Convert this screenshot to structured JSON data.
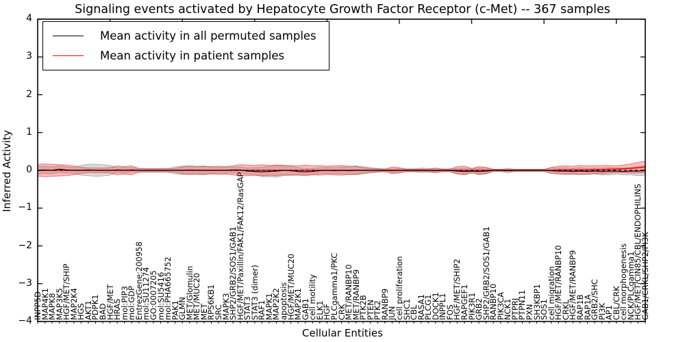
{
  "figure": {
    "title": "Signaling events activated by Hepatocyte Growth Factor Receptor (c-Met) -- 367 samples",
    "xlabel": "Cellular Entities",
    "ylabel": "Inferred Activity"
  },
  "legend": {
    "entries": [
      {
        "label": "Mean activity in all permuted samples",
        "color": "#000000"
      },
      {
        "label": "Mean activity in patient samples",
        "color": "#ff0000"
      }
    ]
  },
  "chart_data": {
    "type": "line",
    "title": "Signaling events activated by Hepatocyte Growth Factor Receptor (c-Met) -- 367 samples",
    "xlabel": "Cellular Entities",
    "ylabel": "Inferred Activity",
    "ylim": [
      -4,
      4
    ],
    "yticks": [
      -4,
      -3,
      -2,
      -1,
      0,
      1,
      2,
      3,
      4
    ],
    "grid": false,
    "legend_position": "upper left",
    "zero_line": {
      "y": 0,
      "style": "dashed",
      "color": "#000000"
    },
    "entities": [
      "INPP5D",
      "MAP4K1",
      "MAPK8",
      "MAP3K5",
      "HGF/MET/SHIP",
      "MAP2K4",
      "HGS",
      "AKT1",
      "PDPK1",
      "BAD",
      "HGF/MET",
      "HRAS",
      "mol:PIP3",
      "mol:GDP",
      "EntrezGene:200958",
      "mol:SU11274",
      "GO:0007205",
      "mol:SU5416",
      "mol:PHA665752",
      "PAK1",
      "GLMN",
      "MET/Glomulin",
      "MET/MUC20",
      "MET",
      "RPS6KB1",
      "SRC",
      "MAPK3",
      "SHP2/GRB2/SOS1/GAB1",
      "HGF/MET/Paxillin/FAK1/FAK12/RasGAP",
      "STAT3",
      "STAT3 (dimer)",
      "RAF1",
      "MAPK1",
      "MAP2K2",
      "apoptosis",
      "HGF/MET/MUC20",
      "MAP2K1",
      "GAB1",
      "cell motility",
      "ELK1",
      "HGF",
      "PLCgamma1/PKC",
      "CRK",
      "MET/RANBP10",
      "MET/RANBP9",
      "PTK2B",
      "PTEN",
      "PTK2",
      "RANBP9",
      "JUN",
      "cell proliferation",
      "SHC1",
      "CBL",
      "RASA1",
      "PLCG1",
      "DOCK1",
      "INPPL1",
      "FOS",
      "HGF/MET/SHIP2",
      "RAPGEF1",
      "PIK3R1",
      "GRB2",
      "SHP2/GRB2/SOS1/GAB1",
      "RANBP10",
      "PIK3CA",
      "NCK1",
      "PTPRJ",
      "PTPN11",
      "PXN",
      "SH3KBP1",
      "SOS1",
      "cell migration",
      "HGF/MET/RANBP10",
      "CRKL",
      "HGF/MET/RANBP9",
      "RAP1B",
      "RAP1A",
      "GRB2/SHC",
      "PI3K",
      "AP1",
      "CBL/CRK",
      "cell morphogenesis",
      "NCK/PLCgamma1",
      "HGF/MET/CIN85/CBL/ENDOPHILINS",
      "GAB1/CRKL/SHP2/PI3K"
    ],
    "series": [
      {
        "name": "Mean activity in all permuted samples",
        "color": "#000000",
        "band_color": "rgba(130,130,130,0.30)",
        "band_edge": "rgba(110,110,110,0.45)",
        "values": [
          0,
          0.01,
          0,
          0.03,
          0.01,
          0,
          0,
          0.01,
          0,
          0,
          0,
          0.01,
          0,
          0.01,
          0,
          0,
          0,
          0,
          0,
          0,
          0,
          0.01,
          0,
          0,
          0,
          0,
          0,
          0.01,
          0.01,
          -0.02,
          -0.03,
          -0.04,
          -0.03,
          -0.02,
          0,
          -0.01,
          -0.03,
          -0.04,
          -0.03,
          -0.01,
          0,
          -0.01,
          0,
          -0.01,
          0,
          0,
          0,
          0,
          0,
          -0.01,
          0,
          0,
          0,
          0,
          0,
          -0.01,
          0,
          0,
          -0.02,
          -0.03,
          -0.02,
          -0.03,
          -0.02,
          0,
          0,
          -0.01,
          0,
          0,
          0,
          0,
          0,
          -0.01,
          -0.02,
          -0.02,
          -0.03,
          -0.02,
          -0.03,
          -0.02,
          -0.03,
          -0.02,
          -0.02,
          -0.03,
          -0.02,
          -0.02,
          -0.01
        ],
        "band_halfwidth": [
          0.1,
          0.1,
          0.09,
          0.09,
          0.08,
          0.08,
          0.13,
          0.15,
          0.16,
          0.15,
          0.13,
          0.06,
          0.08,
          0.06,
          0.05,
          0.05,
          0.05,
          0.05,
          0.05,
          0.09,
          0.11,
          0.12,
          0.11,
          0.12,
          0.08,
          0.08,
          0.08,
          0.08,
          0.08,
          0.08,
          0.1,
          0.12,
          0.14,
          0.16,
          0.14,
          0.12,
          0.1,
          0.09,
          0.08,
          0.08,
          0.08,
          0.08,
          0.09,
          0.1,
          0.12,
          0.1,
          0.07,
          0.05,
          0.04,
          0.05,
          0.05,
          0.04,
          0.04,
          0.06,
          0.05,
          0.05,
          0.04,
          0.04,
          0.07,
          0.09,
          0.06,
          0.09,
          0.08,
          0.03,
          0.03,
          0.06,
          0.03,
          0.03,
          0.03,
          0.03,
          0.03,
          0.07,
          0.08,
          0.09,
          0.08,
          0.09,
          0.08,
          0.08,
          0.09,
          0.1,
          0.08,
          0.09,
          0.1,
          0.12,
          0.13
        ]
      },
      {
        "name": "Mean activity in patient samples",
        "color": "#ff0000",
        "band_color": "rgba(244,80,80,0.38)",
        "band_edge": "rgba(205,45,45,0.55)",
        "values": [
          0,
          0,
          0,
          0,
          0,
          0,
          0,
          0,
          0,
          0,
          0,
          0,
          0,
          0,
          0,
          0,
          0,
          0,
          0,
          0,
          0,
          0,
          0,
          0,
          0,
          0,
          0,
          0,
          0,
          0,
          0,
          0,
          0,
          0,
          0,
          0,
          0,
          0,
          0,
          0,
          0,
          0,
          0,
          0,
          0,
          0,
          0,
          0,
          0,
          0,
          0,
          0,
          0,
          0,
          0,
          0,
          0,
          0,
          0,
          0,
          0,
          0,
          0,
          0,
          0,
          0,
          0,
          0,
          0,
          0,
          0,
          0,
          0.01,
          0.01,
          0.01,
          0.01,
          0.01,
          0.02,
          0.02,
          0.03,
          0.03,
          0.04,
          0.05,
          0.07,
          0.09
        ],
        "band_halfwidth": [
          0.16,
          0.17,
          0.16,
          0.15,
          0.14,
          0.12,
          0.08,
          0.06,
          0.06,
          0.06,
          0.07,
          0.12,
          0.1,
          0.12,
          0.05,
          0.04,
          0.04,
          0.04,
          0.04,
          0.05,
          0.09,
          0.1,
          0.09,
          0.1,
          0.1,
          0.11,
          0.1,
          0.12,
          0.15,
          0.14,
          0.13,
          0.15,
          0.13,
          0.14,
          0.12,
          0.13,
          0.12,
          0.14,
          0.12,
          0.13,
          0.11,
          0.12,
          0.13,
          0.11,
          0.1,
          0.07,
          0.05,
          0.04,
          0.03,
          0.09,
          0.07,
          0.03,
          0.03,
          0.03,
          0.03,
          0.06,
          0.03,
          0.03,
          0.1,
          0.11,
          0.05,
          0.1,
          0.08,
          0.03,
          0.025,
          0.025,
          0.025,
          0.025,
          0.025,
          0.025,
          0.025,
          0.08,
          0.1,
          0.11,
          0.1,
          0.12,
          0.11,
          0.1,
          0.11,
          0.1,
          0.09,
          0.1,
          0.12,
          0.14,
          0.15
        ]
      }
    ]
  }
}
